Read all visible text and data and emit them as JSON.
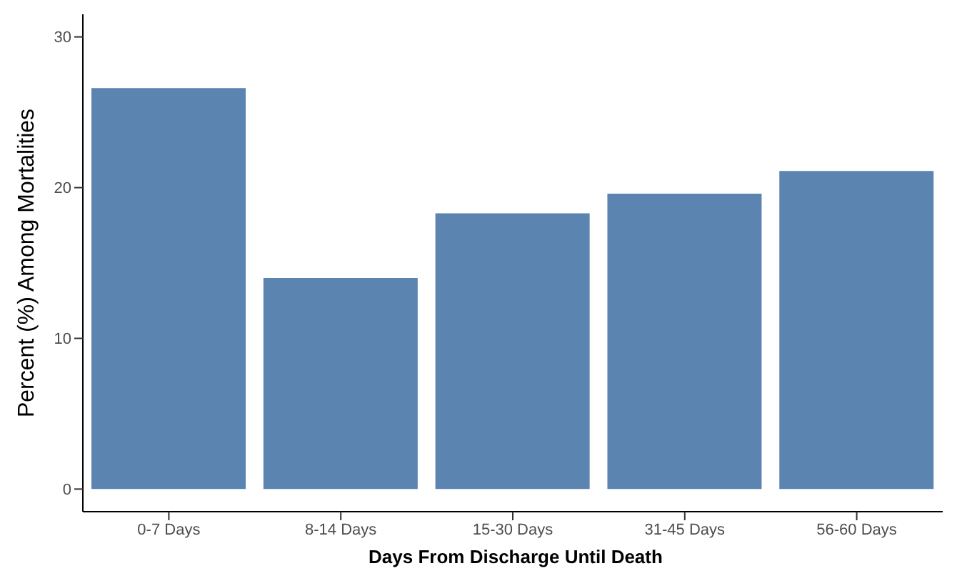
{
  "chart_data": {
    "type": "bar",
    "xlabel": "Days From Discharge Until Death",
    "ylabel": "Percent (%) Among Mortalities",
    "categories": [
      "0-7 Days",
      "8-14 Days",
      "15-30 Days",
      "31-45 Days",
      "56-60 Days"
    ],
    "values": [
      26.6,
      14.0,
      18.3,
      19.6,
      21.1
    ],
    "color": "#5b84b1",
    "ylim": [
      -1.5,
      31.5
    ],
    "yticks": [
      0,
      10,
      20,
      30
    ],
    "grid": false
  }
}
